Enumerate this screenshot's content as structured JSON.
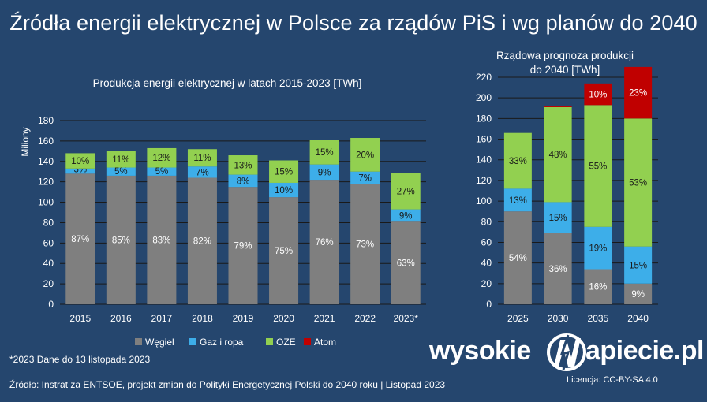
{
  "title": "Źródła energii elektrycznej w Polsce za rządów PiS i wg planów do 2040",
  "colors": {
    "background": "#25466e",
    "coal": "#7f7f7f",
    "gas": "#3daee9",
    "renewables": "#92d050",
    "nuclear": "#c00000",
    "grid": "#1a1a1a"
  },
  "legend": [
    {
      "label": "Węgiel",
      "color": "#7f7f7f"
    },
    {
      "label": "Gaz i ropa",
      "color": "#3daee9"
    },
    {
      "label": "OZE",
      "color": "#92d050"
    },
    {
      "label": "Atom",
      "color": "#c00000"
    }
  ],
  "footnote": "*2023 Dane do 13 listopada 2023",
  "source": "Źródło: Instrat za ENTSOE, projekt zmian do Polityki Energetycznej Polski do 2040 roku  |  Listopad 2023",
  "license": "Licencja: CC-BY-SA 4.0",
  "logo": {
    "left": "wysokie",
    "right": "apiecie.pl",
    "mark": "lightning-n-icon"
  },
  "chart_data": [
    {
      "type": "bar",
      "stacked": true,
      "title": "Produkcja energii elektrycznej w latach 2015-2023 [TWh]",
      "ylabel": "Miliony",
      "ylim": [
        0,
        180
      ],
      "yticks": [
        0,
        20,
        40,
        60,
        80,
        100,
        120,
        140,
        160,
        180
      ],
      "grid": true,
      "categories": [
        "2015",
        "2016",
        "2017",
        "2018",
        "2019",
        "2020",
        "2021",
        "2022",
        "2023*"
      ],
      "series": [
        {
          "name": "Węgiel",
          "color": "#7f7f7f",
          "values": [
            128,
            126,
            126,
            124,
            115,
            105,
            122,
            118,
            81
          ],
          "labels": [
            "87%",
            "85%",
            "83%",
            "82%",
            "79%",
            "75%",
            "76%",
            "73%",
            "63%"
          ]
        },
        {
          "name": "Gaz i ropa",
          "color": "#3daee9",
          "values": [
            5,
            8,
            8,
            11,
            12,
            14,
            15,
            12,
            12
          ],
          "labels": [
            "3%",
            "5%",
            "5%",
            "7%",
            "8%",
            "10%",
            "9%",
            "7%",
            "9%"
          ]
        },
        {
          "name": "OZE",
          "color": "#92d050",
          "values": [
            15,
            16,
            19,
            17,
            19,
            22,
            24,
            33,
            36
          ],
          "labels": [
            "10%",
            "11%",
            "12%",
            "11%",
            "13%",
            "15%",
            "15%",
            "20%",
            "27%"
          ]
        }
      ]
    },
    {
      "type": "bar",
      "stacked": true,
      "title": [
        "Rządowa prognoza produkcji",
        "do 2040 [TWh]"
      ],
      "ylim": [
        0,
        220
      ],
      "yticks": [
        0,
        20,
        40,
        60,
        80,
        100,
        120,
        140,
        160,
        180,
        200,
        220
      ],
      "grid": true,
      "categories": [
        "2025",
        "2030",
        "2035",
        "2040"
      ],
      "series": [
        {
          "name": "Węgiel",
          "color": "#7f7f7f",
          "values": [
            90,
            69,
            34,
            20
          ],
          "labels": [
            "54%",
            "36%",
            "16%",
            "9%"
          ]
        },
        {
          "name": "Gaz i ropa",
          "color": "#3daee9",
          "values": [
            22,
            30,
            41,
            36
          ],
          "labels": [
            "13%",
            "15%",
            "19%",
            "15%"
          ]
        },
        {
          "name": "OZE",
          "color": "#92d050",
          "values": [
            54,
            92,
            118,
            124
          ],
          "labels": [
            "33%",
            "48%",
            "55%",
            "53%"
          ]
        },
        {
          "name": "Atom",
          "color": "#c00000",
          "values": [
            0,
            1,
            21,
            50
          ],
          "labels": [
            "",
            "",
            "10%",
            "23%"
          ]
        }
      ]
    }
  ]
}
